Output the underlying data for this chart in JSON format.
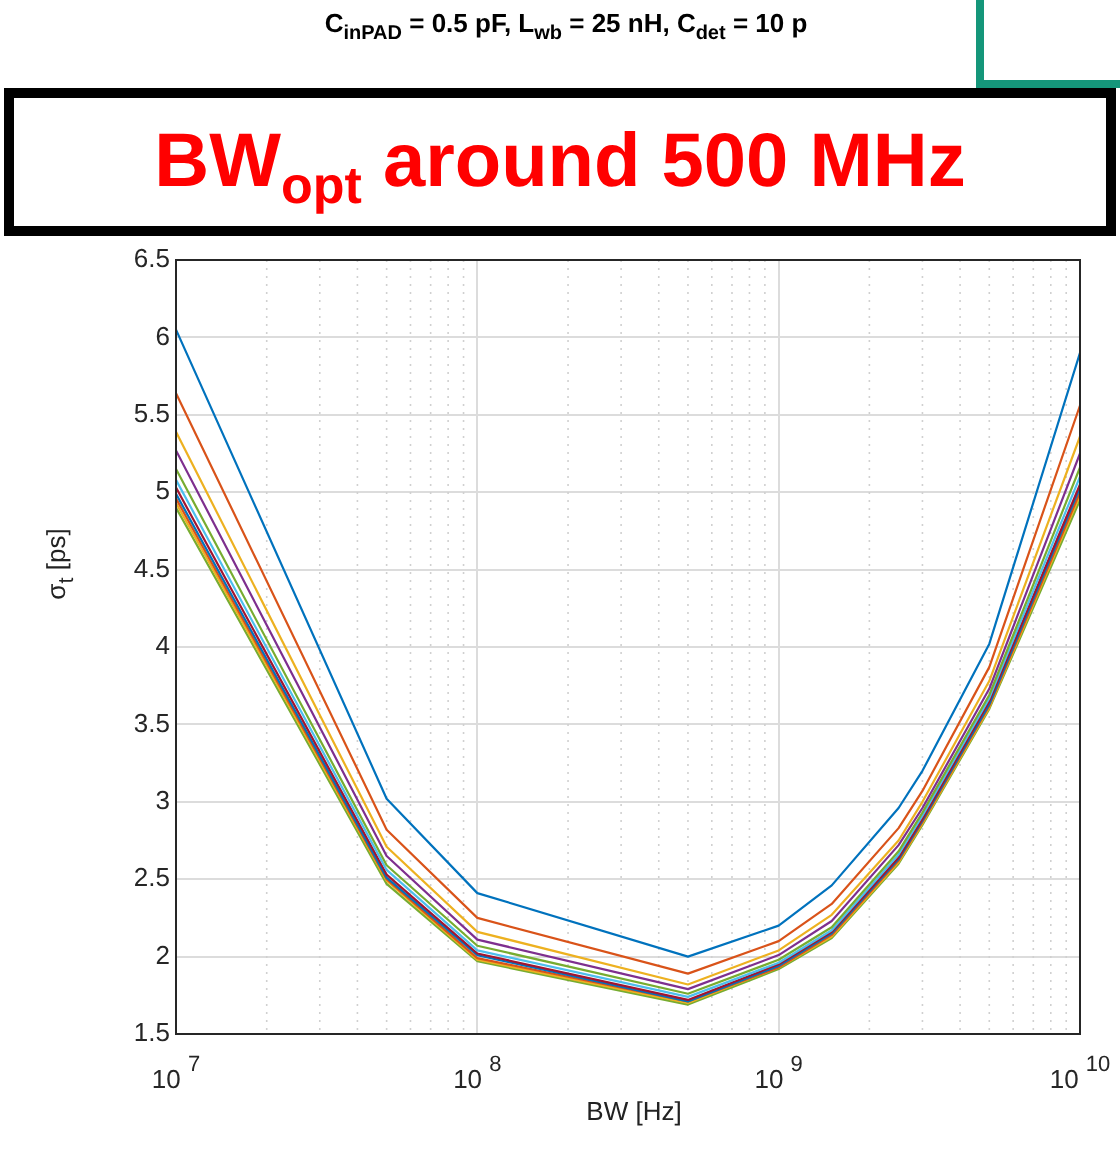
{
  "chart_data": {
    "type": "line",
    "title": "C$_{inPAD}$ = 0.5 pF, L$_{wb}$ = 25 nH, C$_{det}$ = 10 p",
    "xlabel": "BW [Hz]",
    "ylabel": "σ$_{t}$ [ps]",
    "annotations": [
      "BW$_{opt}$ around 500 MHz"
    ],
    "x": [
      10000000,
      50000000,
      100000000,
      500000000,
      1000000000,
      1500000000,
      2500000000,
      3000000000,
      5000000000,
      10000000000
    ],
    "series": [
      {
        "color": "#0072bd",
        "values": [
          6.05,
          3.02,
          2.41,
          2.0,
          2.2,
          2.46,
          2.96,
          3.2,
          4.02,
          5.9
        ]
      },
      {
        "color": "#d95319",
        "values": [
          5.64,
          2.82,
          2.25,
          1.89,
          2.1,
          2.34,
          2.83,
          3.07,
          3.87,
          5.56
        ]
      },
      {
        "color": "#edb120",
        "values": [
          5.39,
          2.71,
          2.16,
          1.82,
          2.04,
          2.27,
          2.75,
          3.0,
          3.78,
          5.36
        ]
      },
      {
        "color": "#7e2f8e",
        "values": [
          5.27,
          2.65,
          2.11,
          1.79,
          2.01,
          2.23,
          2.72,
          2.96,
          3.73,
          5.25
        ]
      },
      {
        "color": "#77ac30",
        "values": [
          5.15,
          2.59,
          2.07,
          1.76,
          1.98,
          2.19,
          2.68,
          2.93,
          3.69,
          5.16
        ]
      },
      {
        "color": "#4dbeee",
        "values": [
          5.08,
          2.56,
          2.04,
          1.74,
          1.96,
          2.17,
          2.66,
          2.91,
          3.67,
          5.1
        ]
      },
      {
        "color": "#a2142f",
        "values": [
          5.03,
          2.53,
          2.02,
          1.72,
          1.95,
          2.16,
          2.64,
          2.89,
          3.65,
          5.05
        ]
      },
      {
        "color": "#0072bd",
        "values": [
          4.99,
          2.51,
          2.01,
          1.71,
          1.94,
          2.15,
          2.63,
          2.88,
          3.63,
          5.03
        ]
      },
      {
        "color": "#d95319",
        "values": [
          4.96,
          2.5,
          1.99,
          1.71,
          1.93,
          2.14,
          2.62,
          2.87,
          3.62,
          5.0
        ]
      },
      {
        "color": "#edb120",
        "values": [
          4.93,
          2.49,
          1.98,
          1.7,
          1.93,
          2.13,
          2.61,
          2.86,
          3.61,
          4.98
        ]
      },
      {
        "color": "#77ac30",
        "values": [
          4.9,
          2.47,
          1.97,
          1.69,
          1.92,
          2.12,
          2.6,
          2.85,
          3.6,
          4.95
        ]
      }
    ],
    "log": "x",
    "xlim": [
      10000000,
      10000000000
    ],
    "xticks": [
      {
        "value": 10000000,
        "label": "10$^{7}$"
      },
      {
        "value": 100000000,
        "label": "10$^{8}$"
      },
      {
        "value": 1000000000,
        "label": "10$^{9}$"
      },
      {
        "value": 10000000000,
        "label": "10$^{10}$"
      }
    ],
    "ylim": [
      1.5,
      6.5
    ],
    "yticks": [
      1.5,
      2,
      2.5,
      3,
      3.5,
      4,
      4.5,
      5,
      5.5,
      6,
      6.5
    ],
    "grid": true,
    "legend": false,
    "marker": "none",
    "line_style": "solid"
  }
}
